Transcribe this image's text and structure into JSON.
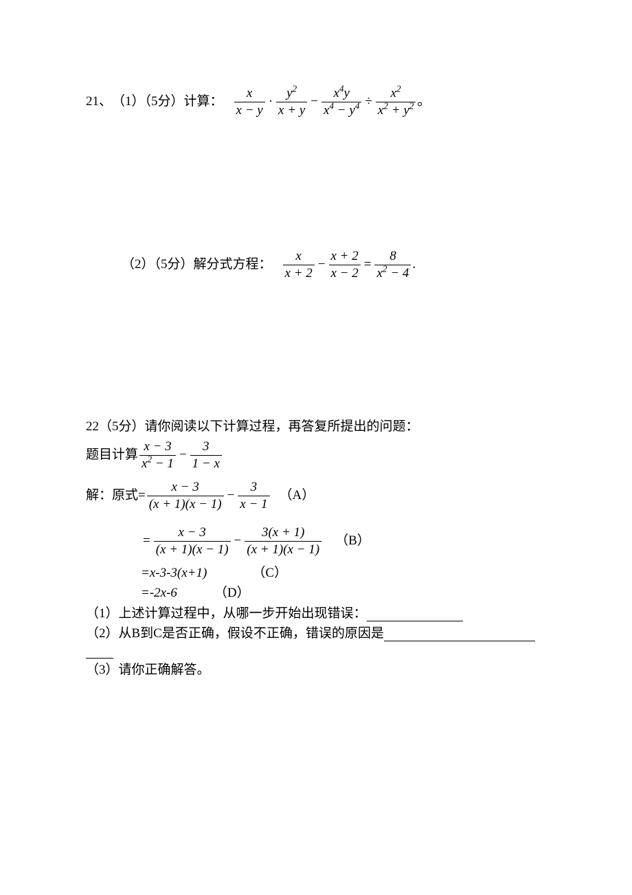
{
  "q21": {
    "number": "21、",
    "part1_label": "（1）（5分）计算：",
    "f1": {
      "num": "x",
      "den": "x − y"
    },
    "f2": {
      "num": "y<sup>2</sup>",
      "den": "x + y"
    },
    "f3": {
      "num": "x<sup>4</sup>y",
      "den": "x<sup>4</sup> − y<sup>4</sup>"
    },
    "f4": {
      "num": "x<sup>2</sup>",
      "den": "x<sup>2</sup> + y<sup>2</sup>"
    },
    "end1": "  。",
    "part2_label": "（2）（5分）解分式方程：",
    "g1": {
      "num": "x",
      "den": "x + 2"
    },
    "g2": {
      "num": "x + 2",
      "den": "x − 2"
    },
    "g3": {
      "num": "8",
      "den": "x<sup>2</sup> − 4"
    },
    "end2": "."
  },
  "q22": {
    "heading": "22（5分）请你阅读以下计算过程，再答复所提出的问题：",
    "topic_label": "题目计算",
    "t1": {
      "num": "x − 3",
      "den": "x<sup>2</sup> − 1"
    },
    "t2": {
      "num": "3",
      "den": "1 − x"
    },
    "sol_label": "解：原式=",
    "s1": {
      "f1": {
        "num": "x − 3",
        "den": "(x + 1)(x − 1)"
      },
      "f2": {
        "num": "3",
        "den": "x − 1"
      },
      "tag": "（A）"
    },
    "s2": {
      "f1": {
        "num": "x − 3",
        "den": "(x + 1)(x − 1)"
      },
      "f2": {
        "num": "3(x + 1)",
        "den": "(x + 1)(x − 1)"
      },
      "tag": "（B）"
    },
    "s3": {
      "expr": "=x-3-3(x+1)",
      "tag": "（C）"
    },
    "s4": {
      "expr": "=-2x-6",
      "tag": "（D）"
    },
    "p1_a": "（1）上述计算过程中，从哪一步开始出现错误：",
    "p1_blank_w": 140,
    "p2_a": "（2）从B到C是否正确，假设不正确，错误的原因是",
    "p2_blank_w": 220,
    "p2_tail_blank_w": 40,
    "p3": "（3）请你正确解答。"
  },
  "ops": {
    "dot": "·",
    "minus": "−",
    "div": "÷",
    "eq": "="
  }
}
